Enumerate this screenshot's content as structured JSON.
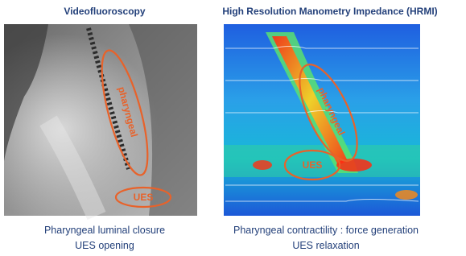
{
  "left_panel": {
    "title": "Videofluoroscopy",
    "labels": [
      "pharyngeal",
      "UES"
    ],
    "caption": [
      "Pharyngeal luminal closure",
      "UES opening"
    ]
  },
  "right_panel": {
    "title": "High Resolution Manometry Impedance (HRMI)",
    "labels": [
      "pharyngeal",
      "UES"
    ],
    "caption": [
      "Pharyngeal contractility : force generation",
      "UES relaxation"
    ]
  }
}
